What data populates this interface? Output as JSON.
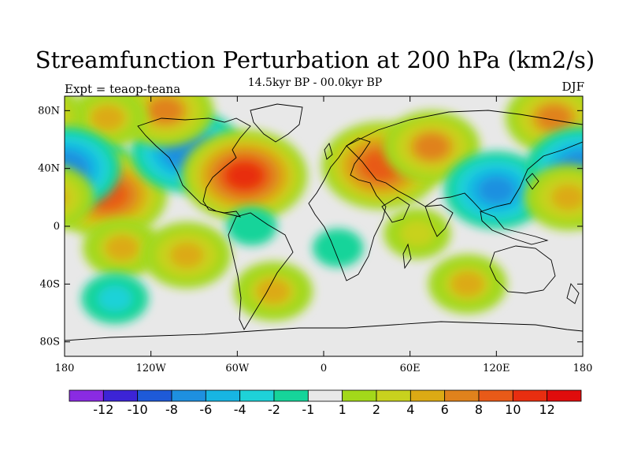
{
  "title": "Streamfunction Perturbation at 200 hPa (km2/s)",
  "subtitle": "14.5kyr BP - 00.0kyr BP",
  "left_label": "Expt = teaop-teana",
  "right_label": "DJF",
  "axes": {
    "lat_ticks": [
      "80N",
      "40N",
      "0",
      "40S",
      "80S"
    ],
    "lon_ticks": [
      "180",
      "120W",
      "60W",
      "0",
      "60E",
      "120E",
      "180"
    ]
  },
  "colorbar": {
    "labels": [
      "-12",
      "-10",
      "-8",
      "-6",
      "-4",
      "-2",
      "-1",
      "1",
      "2",
      "4",
      "6",
      "8",
      "10",
      "12"
    ],
    "colors": [
      "#8a2be2",
      "#3c24d6",
      "#1e5ad8",
      "#1e90e0",
      "#17b5e3",
      "#1ed2d8",
      "#16d49a",
      "#e8e8e8",
      "#a3d81a",
      "#c8d21e",
      "#dcaa14",
      "#e0821c",
      "#e85a18",
      "#e82e10",
      "#e00c0c"
    ]
  },
  "anomaly_centers": [
    {
      "lon": -175,
      "lat": 40,
      "value": -9
    },
    {
      "lon": -150,
      "lat": 22,
      "value": 9
    },
    {
      "lon": -95,
      "lat": 52,
      "value": -8
    },
    {
      "lon": -55,
      "lat": 35,
      "value": 10
    },
    {
      "lon": -110,
      "lat": 80,
      "value": 6
    },
    {
      "lon": -150,
      "lat": 75,
      "value": 4
    },
    {
      "lon": 40,
      "lat": 42,
      "value": 9
    },
    {
      "lon": 75,
      "lat": 55,
      "value": 6
    },
    {
      "lon": 120,
      "lat": 25,
      "value": -7
    },
    {
      "lon": 160,
      "lat": 75,
      "value": 6
    },
    {
      "lon": 180,
      "lat": 40,
      "value": -8
    },
    {
      "lon": 170,
      "lat": 20,
      "value": 5
    },
    {
      "lon": -140,
      "lat": -15,
      "value": 4
    },
    {
      "lon": -95,
      "lat": -20,
      "value": 5
    },
    {
      "lon": -145,
      "lat": -50,
      "value": -3
    },
    {
      "lon": -35,
      "lat": -45,
      "value": 4
    },
    {
      "lon": 100,
      "lat": -40,
      "value": 4
    },
    {
      "lon": 65,
      "lat": -5,
      "value": 3
    },
    {
      "lon": -50,
      "lat": 0,
      "value": -2
    },
    {
      "lon": 10,
      "lat": -15,
      "value": -2
    }
  ]
}
